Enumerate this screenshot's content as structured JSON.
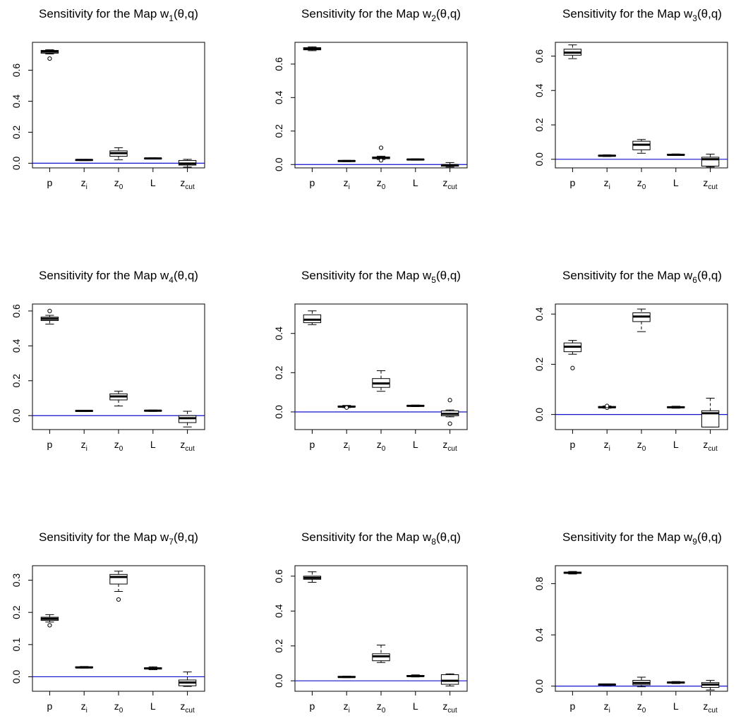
{
  "chart_data": [
    {
      "type": "box",
      "title": "Sensitivity for the Map w",
      "title_subscript": "1",
      "title_suffix": "(θ,q)",
      "categories": [
        "p",
        "zi",
        "z0",
        "L",
        "zcut"
      ],
      "yticks": [
        0.0,
        0.2,
        0.4,
        0.6
      ],
      "ylim": [
        -0.03,
        0.78
      ],
      "reference_line": 0,
      "boxes": [
        {
          "min": 0.705,
          "q1": 0.71,
          "median": 0.72,
          "q3": 0.728,
          "max": 0.732,
          "outliers": [
            0.675
          ]
        },
        {
          "min": 0.017,
          "q1": 0.019,
          "median": 0.021,
          "q3": 0.023,
          "max": 0.025,
          "outliers": []
        },
        {
          "min": 0.022,
          "q1": 0.045,
          "median": 0.065,
          "q3": 0.08,
          "max": 0.1,
          "outliers": []
        },
        {
          "min": 0.027,
          "q1": 0.029,
          "median": 0.031,
          "q3": 0.033,
          "max": 0.035,
          "outliers": []
        },
        {
          "min": -0.025,
          "q1": -0.012,
          "median": -0.002,
          "q3": 0.018,
          "max": 0.025,
          "outliers": []
        }
      ]
    },
    {
      "type": "box",
      "title": "Sensitivity for the Map w",
      "title_subscript": "2",
      "title_suffix": "(θ,q)",
      "categories": [
        "p",
        "zi",
        "z0",
        "L",
        "zcut"
      ],
      "yticks": [
        0.0,
        0.2,
        0.4,
        0.6
      ],
      "ylim": [
        -0.02,
        0.73
      ],
      "reference_line": 0,
      "boxes": [
        {
          "min": 0.68,
          "q1": 0.685,
          "median": 0.692,
          "q3": 0.698,
          "max": 0.703,
          "outliers": []
        },
        {
          "min": 0.017,
          "q1": 0.019,
          "median": 0.021,
          "q3": 0.023,
          "max": 0.025,
          "outliers": []
        },
        {
          "min": 0.03,
          "q1": 0.035,
          "median": 0.04,
          "q3": 0.045,
          "max": 0.05,
          "outliers": [
            0.1,
            0.025
          ]
        },
        {
          "min": 0.026,
          "q1": 0.028,
          "median": 0.03,
          "q3": 0.032,
          "max": 0.034,
          "outliers": []
        },
        {
          "min": -0.015,
          "q1": -0.01,
          "median": -0.004,
          "q3": 0.0,
          "max": 0.012,
          "outliers": []
        }
      ]
    },
    {
      "type": "box",
      "title": "Sensitivity for the Map w",
      "title_subscript": "3",
      "title_suffix": "(θ,q)",
      "categories": [
        "p",
        "zi",
        "z0",
        "L",
        "zcut"
      ],
      "yticks": [
        0.0,
        0.2,
        0.4,
        0.6
      ],
      "ylim": [
        -0.05,
        0.68
      ],
      "reference_line": 0,
      "boxes": [
        {
          "min": 0.585,
          "q1": 0.605,
          "median": 0.62,
          "q3": 0.64,
          "max": 0.665,
          "outliers": []
        },
        {
          "min": 0.016,
          "q1": 0.018,
          "median": 0.021,
          "q3": 0.024,
          "max": 0.026,
          "outliers": []
        },
        {
          "min": 0.035,
          "q1": 0.055,
          "median": 0.085,
          "q3": 0.105,
          "max": 0.115,
          "outliers": []
        },
        {
          "min": 0.022,
          "q1": 0.024,
          "median": 0.026,
          "q3": 0.029,
          "max": 0.031,
          "outliers": []
        },
        {
          "min": -0.045,
          "q1": -0.04,
          "median": 0.0,
          "q3": 0.012,
          "max": 0.03,
          "outliers": []
        }
      ]
    },
    {
      "type": "box",
      "title": "Sensitivity for the Map w",
      "title_subscript": "4",
      "title_suffix": "(θ,q)",
      "categories": [
        "p",
        "zi",
        "z0",
        "L",
        "zcut"
      ],
      "yticks": [
        0.0,
        0.2,
        0.4,
        0.6
      ],
      "ylim": [
        -0.08,
        0.64
      ],
      "reference_line": 0,
      "boxes": [
        {
          "min": 0.525,
          "q1": 0.545,
          "median": 0.555,
          "q3": 0.565,
          "max": 0.575,
          "outliers": [
            0.6
          ]
        },
        {
          "min": 0.023,
          "q1": 0.025,
          "median": 0.027,
          "q3": 0.029,
          "max": 0.031,
          "outliers": []
        },
        {
          "min": 0.055,
          "q1": 0.09,
          "median": 0.11,
          "q3": 0.125,
          "max": 0.14,
          "outliers": []
        },
        {
          "min": 0.024,
          "q1": 0.026,
          "median": 0.028,
          "q3": 0.03,
          "max": 0.032,
          "outliers": []
        },
        {
          "min": -0.065,
          "q1": -0.04,
          "median": -0.015,
          "q3": 0.0,
          "max": 0.025,
          "outliers": []
        }
      ]
    },
    {
      "type": "box",
      "title": "Sensitivity for the Map w",
      "title_subscript": "5",
      "title_suffix": "(θ,q)",
      "categories": [
        "p",
        "zi",
        "z0",
        "L",
        "zcut"
      ],
      "yticks": [
        0.0,
        0.2,
        0.4
      ],
      "ylim": [
        -0.09,
        0.55
      ],
      "reference_line": 0,
      "boxes": [
        {
          "min": 0.445,
          "q1": 0.455,
          "median": 0.47,
          "q3": 0.495,
          "max": 0.515,
          "outliers": []
        },
        {
          "min": 0.022,
          "q1": 0.025,
          "median": 0.027,
          "q3": 0.03,
          "max": 0.033,
          "outliers": [
            0.022
          ]
        },
        {
          "min": 0.105,
          "q1": 0.125,
          "median": 0.145,
          "q3": 0.17,
          "max": 0.21,
          "outliers": []
        },
        {
          "min": 0.027,
          "q1": 0.029,
          "median": 0.031,
          "q3": 0.033,
          "max": 0.035,
          "outliers": []
        },
        {
          "min": -0.025,
          "q1": -0.02,
          "median": -0.01,
          "q3": 0.005,
          "max": 0.01,
          "outliers": [
            0.06,
            -0.06
          ]
        }
      ]
    },
    {
      "type": "box",
      "title": "Sensitivity for the Map w",
      "title_subscript": "6",
      "title_suffix": "(θ,q)",
      "categories": [
        "p",
        "zi",
        "z0",
        "L",
        "zcut"
      ],
      "yticks": [
        0.0,
        0.2,
        0.4
      ],
      "ylim": [
        -0.06,
        0.44
      ],
      "reference_line": 0,
      "boxes": [
        {
          "min": 0.24,
          "q1": 0.25,
          "median": 0.27,
          "q3": 0.285,
          "max": 0.295,
          "outliers": [
            0.185
          ]
        },
        {
          "min": 0.025,
          "q1": 0.027,
          "median": 0.029,
          "q3": 0.032,
          "max": 0.034,
          "outliers": [
            0.027,
            0.034
          ]
        },
        {
          "min": 0.33,
          "q1": 0.37,
          "median": 0.39,
          "q3": 0.405,
          "max": 0.42,
          "outliers": []
        },
        {
          "min": 0.025,
          "q1": 0.027,
          "median": 0.029,
          "q3": 0.031,
          "max": 0.033,
          "outliers": []
        },
        {
          "min": -0.05,
          "q1": -0.05,
          "median": 0.005,
          "q3": 0.015,
          "max": 0.065,
          "outliers": []
        }
      ]
    },
    {
      "type": "box",
      "title": "Sensitivity for the Map w",
      "title_subscript": "7",
      "title_suffix": "(θ,q)",
      "categories": [
        "p",
        "zi",
        "z0",
        "L",
        "zcut"
      ],
      "yticks": [
        0.0,
        0.1,
        0.2,
        0.3
      ],
      "ylim": [
        -0.045,
        0.345
      ],
      "reference_line": 0,
      "boxes": [
        {
          "min": 0.17,
          "q1": 0.175,
          "median": 0.18,
          "q3": 0.185,
          "max": 0.193,
          "outliers": [
            0.16
          ]
        },
        {
          "min": 0.027,
          "q1": 0.028,
          "median": 0.029,
          "q3": 0.031,
          "max": 0.032,
          "outliers": []
        },
        {
          "min": 0.265,
          "q1": 0.288,
          "median": 0.31,
          "q3": 0.318,
          "max": 0.328,
          "outliers": [
            0.24
          ]
        },
        {
          "min": 0.022,
          "q1": 0.024,
          "median": 0.026,
          "q3": 0.028,
          "max": 0.031,
          "outliers": []
        },
        {
          "min": -0.03,
          "q1": -0.028,
          "median": -0.018,
          "q3": -0.01,
          "max": 0.015,
          "outliers": []
        }
      ]
    },
    {
      "type": "box",
      "title": "Sensitivity for the Map w",
      "title_subscript": "8",
      "title_suffix": "(θ,q)",
      "categories": [
        "p",
        "zi",
        "z0",
        "L",
        "zcut"
      ],
      "yticks": [
        0.0,
        0.2,
        0.4,
        0.6
      ],
      "ylim": [
        -0.06,
        0.66
      ],
      "reference_line": 0,
      "boxes": [
        {
          "min": 0.565,
          "q1": 0.582,
          "median": 0.59,
          "q3": 0.6,
          "max": 0.625,
          "outliers": []
        },
        {
          "min": 0.018,
          "q1": 0.02,
          "median": 0.022,
          "q3": 0.025,
          "max": 0.027,
          "outliers": []
        },
        {
          "min": 0.105,
          "q1": 0.115,
          "median": 0.14,
          "q3": 0.155,
          "max": 0.205,
          "outliers": []
        },
        {
          "min": 0.022,
          "q1": 0.025,
          "median": 0.027,
          "q3": 0.031,
          "max": 0.034,
          "outliers": []
        },
        {
          "min": -0.03,
          "q1": -0.02,
          "median": 0.0,
          "q3": 0.035,
          "max": 0.04,
          "outliers": []
        }
      ]
    },
    {
      "type": "box",
      "title": "Sensitivity for the Map w",
      "title_subscript": "9",
      "title_suffix": "(θ,q)",
      "categories": [
        "p",
        "zi",
        "z0",
        "L",
        "zcut"
      ],
      "yticks": [
        0.0,
        0.4,
        0.8
      ],
      "ylim": [
        -0.04,
        0.94
      ],
      "reference_line": 0,
      "boxes": [
        {
          "min": 0.875,
          "q1": 0.88,
          "median": 0.885,
          "q3": 0.89,
          "max": 0.895,
          "outliers": []
        },
        {
          "min": 0.005,
          "q1": 0.008,
          "median": 0.012,
          "q3": 0.015,
          "max": 0.018,
          "outliers": []
        },
        {
          "min": -0.005,
          "q1": 0.01,
          "median": 0.025,
          "q3": 0.045,
          "max": 0.07,
          "outliers": []
        },
        {
          "min": 0.02,
          "q1": 0.024,
          "median": 0.028,
          "q3": 0.032,
          "max": 0.036,
          "outliers": []
        },
        {
          "min": -0.03,
          "q1": -0.01,
          "median": 0.012,
          "q3": 0.028,
          "max": 0.045,
          "outliers": []
        }
      ]
    }
  ]
}
